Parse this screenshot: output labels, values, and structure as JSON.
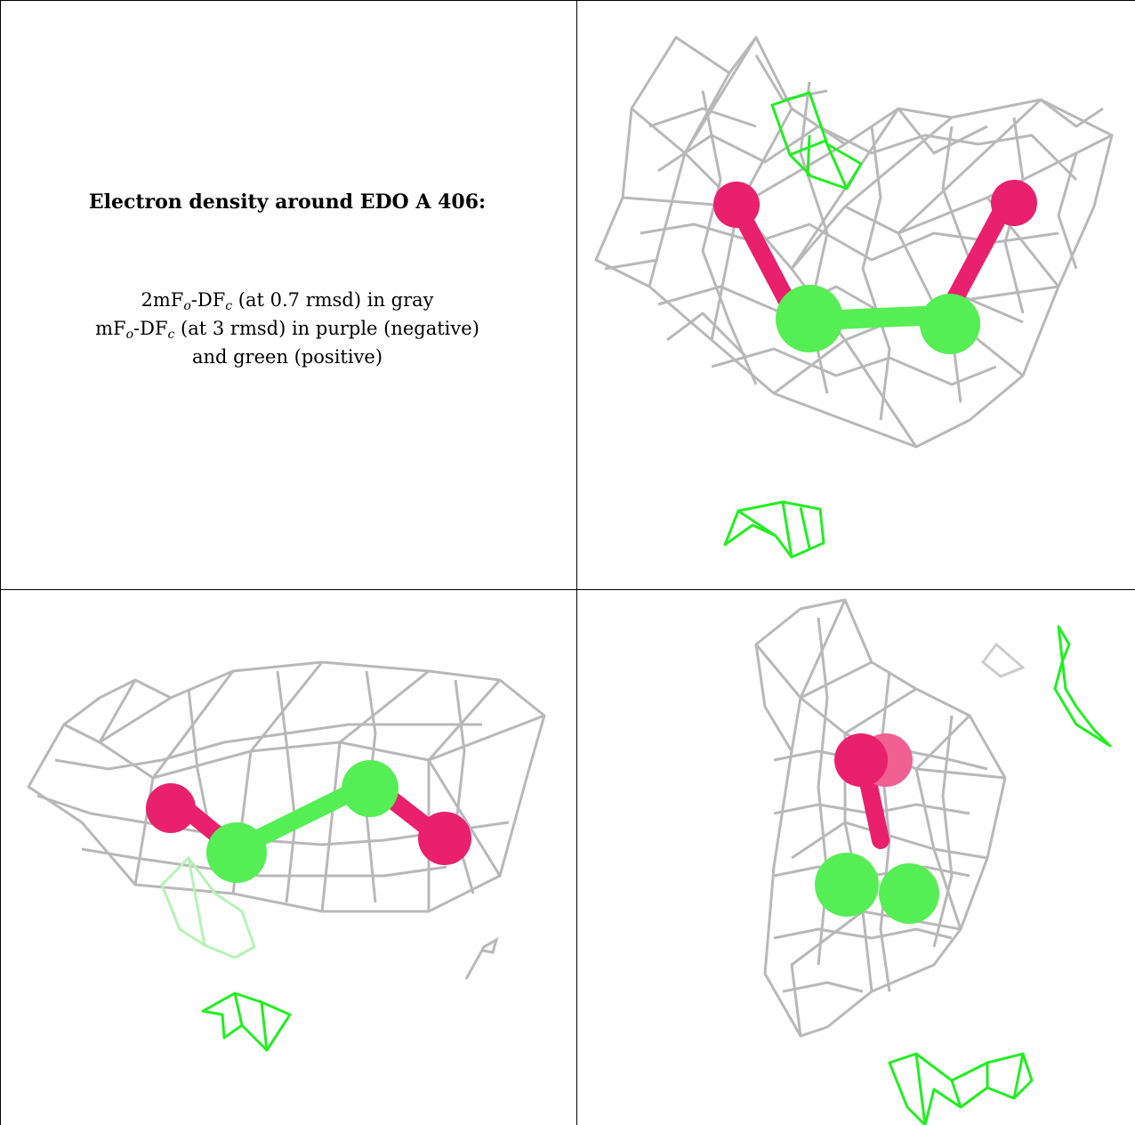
{
  "caption": {
    "heading": "Electron density around EDO A 406:",
    "line1": {
      "a": "2mF",
      "sub1": "o",
      "b": "-DF",
      "sub2": "c",
      "c": " (at 0.7 rmsd) in gray"
    },
    "line2": {
      "a": "mF",
      "sub1": "o",
      "b": "-DF",
      "sub2": "c",
      "c": " (at 3 rmsd) in purple (negative)"
    },
    "line3": "and green (positive)"
  },
  "colors": {
    "mesh_gray": "#b8b8b8",
    "mesh_green": "#22ee22",
    "oxygen": "#e8206e",
    "carbon": "#55ee55"
  },
  "panels": [
    {
      "id": "view-1",
      "content": "2mFo-DFc gray mesh, mFo-DFc green mesh, EDO ball-and-stick"
    },
    {
      "id": "view-2",
      "content": "rotated view"
    },
    {
      "id": "view-3",
      "content": "rotated view"
    }
  ]
}
